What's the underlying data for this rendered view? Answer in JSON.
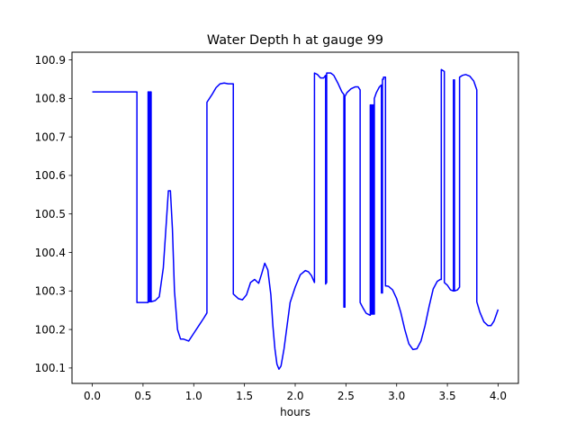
{
  "chart_data": {
    "type": "line",
    "title": "Water Depth h at gauge 99",
    "xlabel": "hours",
    "ylabel": "",
    "xlim": [
      -0.2,
      4.2
    ],
    "ylim": [
      100.06,
      100.92
    ],
    "x_ticks": [
      0.0,
      0.5,
      1.0,
      1.5,
      2.0,
      2.5,
      3.0,
      3.5,
      4.0
    ],
    "x_tick_labels": [
      "0.0",
      "0.5",
      "1.0",
      "1.5",
      "2.0",
      "2.5",
      "3.0",
      "3.5",
      "4.0"
    ],
    "y_ticks": [
      100.1,
      100.2,
      100.3,
      100.4,
      100.5,
      100.6,
      100.7,
      100.8,
      100.9
    ],
    "y_tick_labels": [
      "100.1",
      "100.2",
      "100.3",
      "100.4",
      "100.5",
      "100.6",
      "100.7",
      "100.8",
      "100.9"
    ],
    "grid": false,
    "legend": "none",
    "series": [
      {
        "color": "#0000ff",
        "x": [
          0.0,
          0.44,
          0.44,
          0.55,
          0.55,
          0.56,
          0.56,
          0.57,
          0.57,
          0.58,
          0.58,
          0.62,
          0.66,
          0.7,
          0.73,
          0.75,
          0.77,
          0.79,
          0.81,
          0.84,
          0.87,
          0.9,
          0.95,
          1.0,
          1.05,
          1.1,
          1.13,
          1.13,
          1.18,
          1.22,
          1.26,
          1.3,
          1.34,
          1.38,
          1.39,
          1.39,
          1.44,
          1.48,
          1.52,
          1.56,
          1.6,
          1.64,
          1.67,
          1.7,
          1.73,
          1.76,
          1.78,
          1.8,
          1.82,
          1.84,
          1.86,
          1.89,
          1.92,
          1.95,
          2.0,
          2.05,
          2.1,
          2.13,
          2.16,
          2.19,
          2.19,
          2.22,
          2.25,
          2.28,
          2.3,
          2.3,
          2.31,
          2.31,
          2.32,
          2.35,
          2.38,
          2.42,
          2.46,
          2.48,
          2.48,
          2.49,
          2.49,
          2.51,
          2.55,
          2.59,
          2.62,
          2.64,
          2.64,
          2.67,
          2.7,
          2.73,
          2.74,
          2.74,
          2.75,
          2.75,
          2.76,
          2.76,
          2.77,
          2.77,
          2.78,
          2.78,
          2.8,
          2.83,
          2.85,
          2.85,
          2.86,
          2.86,
          2.87,
          2.87,
          2.89,
          2.89,
          2.9,
          2.92,
          2.96,
          3.0,
          3.04,
          3.08,
          3.12,
          3.16,
          3.2,
          3.24,
          3.28,
          3.32,
          3.36,
          3.4,
          3.43,
          3.44,
          3.44,
          3.47,
          3.47,
          3.5,
          3.53,
          3.56,
          3.56,
          3.57,
          3.57,
          3.6,
          3.62,
          3.62,
          3.65,
          3.68,
          3.72,
          3.76,
          3.79,
          3.79,
          3.82,
          3.86,
          3.9,
          3.93,
          3.96,
          4.0
        ],
        "y": [
          100.817,
          100.817,
          100.27,
          100.27,
          100.817,
          100.817,
          100.272,
          100.272,
          100.817,
          100.817,
          100.272,
          100.275,
          100.285,
          100.36,
          100.48,
          100.56,
          100.56,
          100.46,
          100.3,
          100.2,
          100.175,
          100.175,
          100.17,
          100.19,
          100.21,
          100.23,
          100.243,
          100.79,
          100.81,
          100.828,
          100.838,
          100.84,
          100.838,
          100.838,
          100.838,
          100.292,
          100.28,
          100.277,
          100.29,
          100.322,
          100.33,
          100.32,
          100.345,
          100.372,
          100.355,
          100.29,
          100.21,
          100.15,
          100.11,
          100.097,
          100.105,
          100.15,
          100.21,
          100.27,
          100.31,
          100.342,
          100.353,
          100.35,
          100.34,
          100.322,
          100.866,
          100.862,
          100.853,
          100.853,
          100.86,
          100.318,
          100.322,
          100.866,
          100.866,
          100.866,
          100.86,
          100.84,
          100.817,
          100.81,
          100.258,
          100.258,
          100.805,
          100.815,
          100.825,
          100.83,
          100.83,
          100.822,
          100.27,
          100.255,
          100.242,
          100.238,
          100.237,
          100.783,
          100.783,
          100.24,
          100.24,
          100.783,
          100.783,
          100.24,
          100.24,
          100.8,
          100.815,
          100.83,
          100.835,
          100.295,
          100.295,
          100.85,
          100.85,
          100.855,
          100.855,
          100.313,
          100.313,
          100.312,
          100.303,
          100.28,
          100.245,
          100.2,
          100.163,
          100.148,
          100.15,
          100.17,
          100.21,
          100.26,
          100.305,
          100.325,
          100.33,
          100.33,
          100.875,
          100.87,
          100.322,
          100.315,
          100.303,
          100.3,
          100.848,
          100.848,
          100.3,
          100.303,
          100.31,
          100.855,
          100.86,
          100.862,
          100.858,
          100.845,
          100.822,
          100.272,
          100.245,
          100.22,
          100.21,
          100.21,
          100.222,
          100.252
        ]
      }
    ]
  }
}
